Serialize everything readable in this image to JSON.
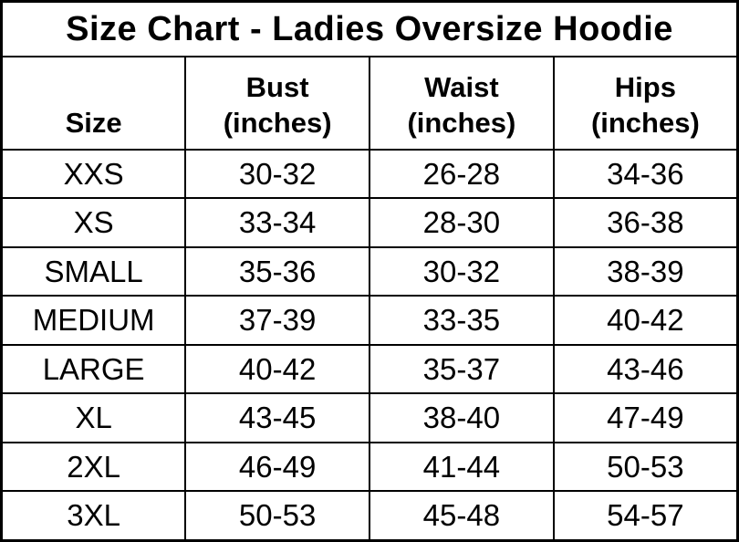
{
  "chart_data": {
    "type": "table",
    "title": "Size Chart - Ladies Oversize Hoodie",
    "headers": [
      {
        "label": "Size",
        "sub": ""
      },
      {
        "label": "Bust",
        "sub": "(inches)"
      },
      {
        "label": "Waist",
        "sub": "(inches)"
      },
      {
        "label": "Hips",
        "sub": "(inches)"
      }
    ],
    "rows": [
      [
        "XXS",
        "30-32",
        "26-28",
        "34-36"
      ],
      [
        "XS",
        "33-34",
        "28-30",
        "36-38"
      ],
      [
        "SMALL",
        "35-36",
        "30-32",
        "38-39"
      ],
      [
        "MEDIUM",
        "37-39",
        "33-35",
        "40-42"
      ],
      [
        "LARGE",
        "40-42",
        "35-37",
        "43-46"
      ],
      [
        "XL",
        "43-45",
        "38-40",
        "47-49"
      ],
      [
        "2XL",
        "46-49",
        "41-44",
        "50-53"
      ],
      [
        "3XL",
        "50-53",
        "45-48",
        "54-57"
      ]
    ],
    "colors": {
      "text": "#000000",
      "background": "#ffffff",
      "border": "#000000"
    }
  }
}
